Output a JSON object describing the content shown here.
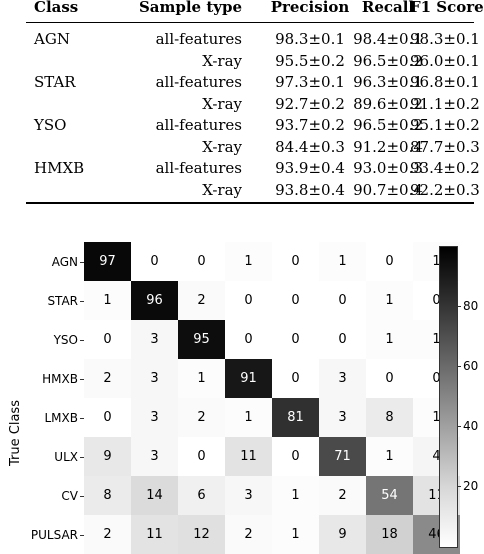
{
  "table": {
    "headers": [
      "Class",
      "Sample type",
      "Precision",
      "Recall",
      "F1 Score"
    ],
    "rows": [
      {
        "class": "AGN",
        "type": "all-features",
        "precision": "98.3±0.1",
        "recall": "98.4±0.1",
        "f1": "98.3±0.1"
      },
      {
        "class": "",
        "type": "X-ray",
        "precision": "95.5±0.2",
        "recall": "96.5±0.2",
        "f1": "96.0±0.1"
      },
      {
        "class": "STAR",
        "type": "all-features",
        "precision": "97.3±0.1",
        "recall": "96.3±0.1",
        "f1": "96.8±0.1"
      },
      {
        "class": "",
        "type": "X-ray",
        "precision": "92.7±0.2",
        "recall": "89.6±0.2",
        "f1": "91.1±0.2"
      },
      {
        "class": "YSO",
        "type": "all-features",
        "precision": "93.7±0.2",
        "recall": "96.5±0.2",
        "f1": "95.1±0.2"
      },
      {
        "class": "",
        "type": "X-ray",
        "precision": "84.4±0.3",
        "recall": "91.2±0.4",
        "f1": "87.7±0.3"
      },
      {
        "class": "HMXB",
        "type": "all-features",
        "precision": "93.9±0.4",
        "recall": "93.0±0.3",
        "f1": "93.4±0.2"
      },
      {
        "class": "",
        "type": "X-ray",
        "precision": "93.8±0.4",
        "recall": "90.7±0.4",
        "f1": "92.2±0.3"
      }
    ]
  },
  "chart_data": {
    "type": "heatmap",
    "ylabel": "True Class",
    "rows": [
      "AGN",
      "STAR",
      "YSO",
      "HMXB",
      "LMXB",
      "ULX",
      "CV",
      "PULSAR"
    ],
    "values": [
      [
        97,
        0,
        0,
        1,
        0,
        1,
        0,
        1
      ],
      [
        1,
        96,
        2,
        0,
        0,
        0,
        1,
        0
      ],
      [
        0,
        3,
        95,
        0,
        0,
        0,
        1,
        1
      ],
      [
        2,
        3,
        1,
        91,
        0,
        3,
        0,
        0
      ],
      [
        0,
        3,
        2,
        1,
        81,
        3,
        8,
        1
      ],
      [
        9,
        3,
        0,
        11,
        0,
        71,
        1,
        4
      ],
      [
        8,
        14,
        6,
        3,
        1,
        2,
        54,
        11
      ],
      [
        2,
        11,
        12,
        2,
        1,
        9,
        18,
        46
      ]
    ],
    "colormap": "Greys",
    "vmin": 0,
    "vmax": 100,
    "colorbar_ticks": [
      "20",
      "40",
      "60",
      "80"
    ]
  }
}
